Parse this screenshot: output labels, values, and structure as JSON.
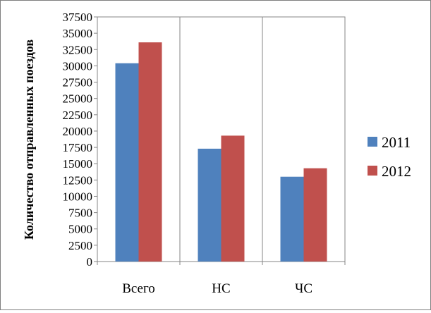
{
  "chart_data": {
    "type": "bar",
    "title": "",
    "xlabel": "",
    "ylabel": "Количество отправленных поездов",
    "categories": [
      "Всего",
      "НС",
      "ЧС"
    ],
    "series": [
      {
        "name": "2011",
        "color": "#4f81bd",
        "values": [
          30400,
          17300,
          13000
        ]
      },
      {
        "name": "2012",
        "color": "#c0504d",
        "values": [
          33600,
          19300,
          14300
        ]
      }
    ],
    "ylim": [
      0,
      37500
    ],
    "yticks": [
      "0",
      "2500",
      "5000",
      "7500",
      "10000",
      "12500",
      "15000",
      "17500",
      "20000",
      "22500",
      "25000",
      "27500",
      "30000",
      "32500",
      "35000",
      "37500"
    ],
    "grid": {
      "vertical": true,
      "horizontal": false
    },
    "legend": {
      "position": "right"
    }
  }
}
